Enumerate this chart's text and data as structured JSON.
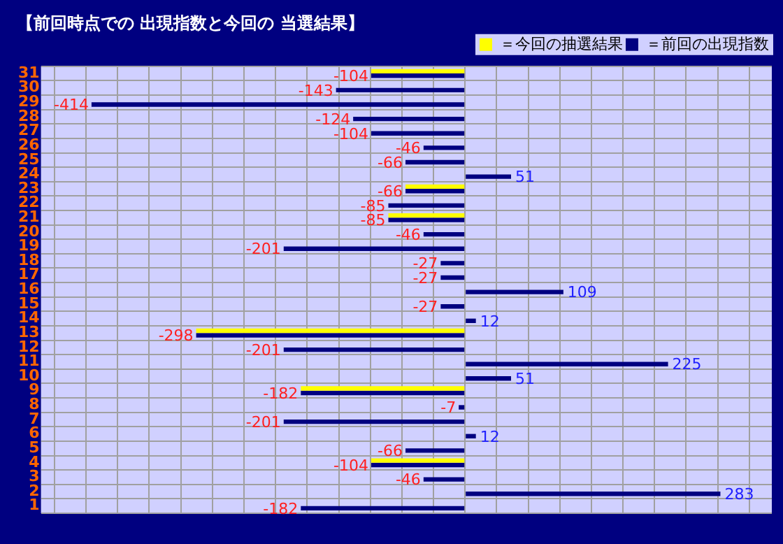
{
  "chart_data": {
    "type": "bar",
    "orientation": "horizontal",
    "title": "【前回時点での 出現指数と今回の 当選結果】",
    "categories": [
      "31",
      "30",
      "29",
      "28",
      "27",
      "26",
      "25",
      "24",
      "23",
      "22",
      "21",
      "20",
      "19",
      "18",
      "17",
      "16",
      "15",
      "14",
      "13",
      "12",
      "11",
      "10",
      "9",
      "8",
      "7",
      "6",
      "5",
      "4",
      "3",
      "2",
      "1"
    ],
    "series": [
      {
        "name": "＝今回の抽選結果",
        "color": "#ffff00",
        "values": [
          -104,
          null,
          null,
          null,
          null,
          null,
          null,
          null,
          -66,
          null,
          -85,
          null,
          null,
          null,
          null,
          null,
          null,
          null,
          -298,
          null,
          null,
          null,
          -182,
          null,
          null,
          null,
          null,
          -104,
          null,
          null,
          null
        ]
      },
      {
        "name": "＝前回の出現指数",
        "color": "#000080",
        "values": [
          -104,
          -143,
          -414,
          -124,
          -104,
          -46,
          -66,
          51,
          -66,
          -85,
          -85,
          -46,
          -201,
          -27,
          -27,
          109,
          -27,
          12,
          -298,
          -201,
          225,
          51,
          -182,
          -7,
          -201,
          12,
          -66,
          -104,
          -46,
          283,
          -182
        ],
        "value_labels": [
          "-104",
          "-143",
          "-414",
          "-124",
          "-104",
          "-46",
          "-66",
          "51",
          "-66",
          "-85",
          "-85",
          "-46",
          "-201",
          "-27",
          "-27",
          "109",
          "-27",
          "12",
          "-298",
          "-201",
          "225",
          "51",
          "-182",
          "-7",
          "-201",
          "12",
          "-66",
          "-104",
          "-46",
          "283",
          "-182"
        ]
      }
    ],
    "xlim": [
      -470,
      340
    ],
    "xticks": [
      {
        "value": -455,
        "label": null
      },
      {
        "value": -420,
        "label": null
      },
      {
        "value": -385,
        "label": null
      },
      {
        "value": -350,
        "label": null
      },
      {
        "value": -315,
        "label": null
      },
      {
        "value": -280,
        "label": null
      },
      {
        "value": -245,
        "label": null
      },
      {
        "value": -210,
        "label": null
      },
      {
        "value": -175,
        "label": null
      },
      {
        "value": -140,
        "label": null
      },
      {
        "value": -105,
        "label": null
      },
      {
        "value": -70,
        "label": null
      },
      {
        "value": -35,
        "label": null
      },
      {
        "value": 0,
        "label": null
      },
      {
        "value": 35,
        "label": null
      },
      {
        "value": 70,
        "label": null
      },
      {
        "value": 105,
        "label": null
      },
      {
        "value": 140,
        "label": null
      },
      {
        "value": 175,
        "label": null
      },
      {
        "value": 210,
        "label": null
      },
      {
        "value": 245,
        "label": null
      },
      {
        "value": 280,
        "label": null
      },
      {
        "value": 315,
        "label": null
      }
    ],
    "tick_labels": "y",
    "grid": true,
    "legend": "top right"
  }
}
